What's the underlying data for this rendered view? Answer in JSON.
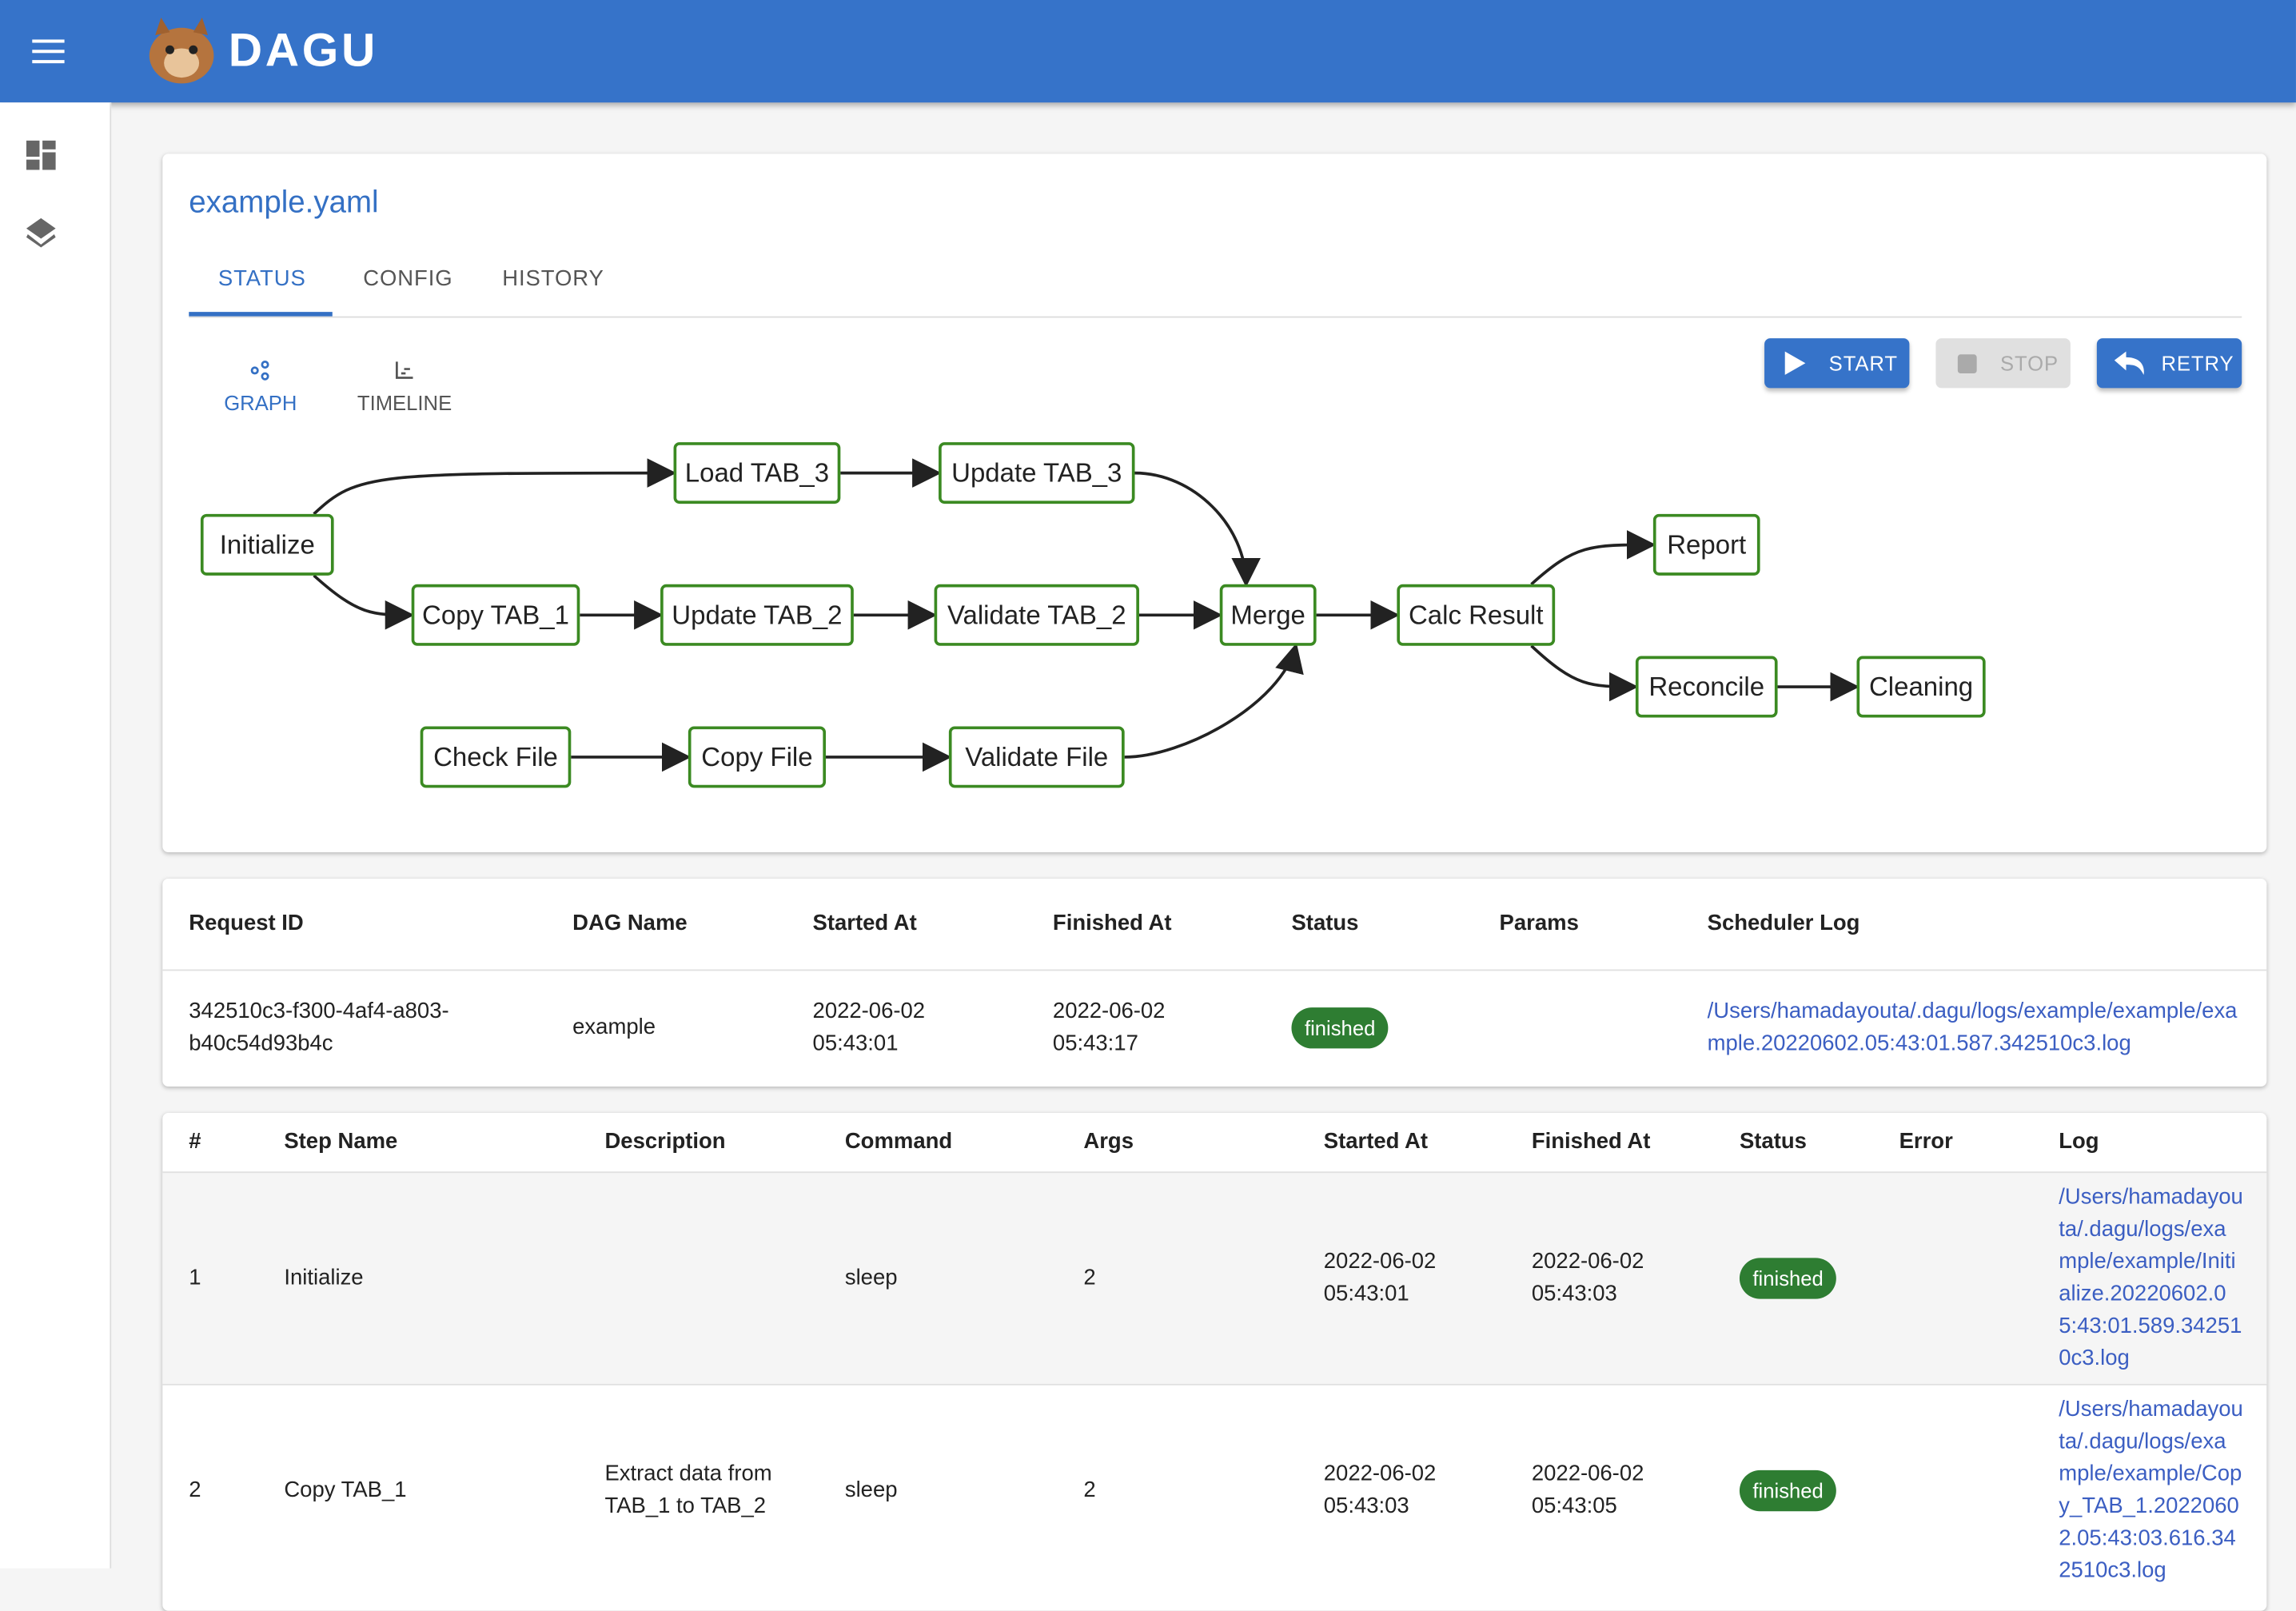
{
  "header": {
    "logo": "DAGU"
  },
  "dag": {
    "title": "example.yaml",
    "tabs": [
      "STATUS",
      "CONFIG",
      "HISTORY"
    ],
    "buttons": [
      "START",
      "STOP",
      "RETRY"
    ],
    "views": [
      "GRAPH",
      "TIMELINE"
    ]
  },
  "graph": {
    "nodes": [
      {
        "label": "Initialize"
      },
      {
        "label": "Load TAB_3"
      },
      {
        "label": "Update TAB_3"
      },
      {
        "label": "Copy TAB_1"
      },
      {
        "label": "Update TAB_2"
      },
      {
        "label": "Validate TAB_2"
      },
      {
        "label": "Merge"
      },
      {
        "label": "Calc Result"
      },
      {
        "label": "Report"
      },
      {
        "label": "Reconcile"
      },
      {
        "label": "Cleaning"
      },
      {
        "label": "Check File"
      },
      {
        "label": "Copy File"
      },
      {
        "label": "Validate File"
      }
    ]
  },
  "summary": {
    "columns": [
      "Request ID",
      "DAG Name",
      "Started At",
      "Finished At",
      "Status",
      "Params",
      "Scheduler Log"
    ],
    "rows": [
      [
        "342510c3-f300-4af4-a803-b40c54d93b4c",
        "example",
        "2022-06-02 05:43:01",
        "2022-06-02 05:43:17",
        "finished",
        null,
        "/Users/hamadayouta/.dagu/logs/example/example/example.20220602.05:43:01.587.342510c3.log"
      ]
    ]
  },
  "steps": {
    "columns": [
      "#",
      "Step Name",
      "Description",
      "Command",
      "Args",
      "Started At",
      "Finished At",
      "Status",
      "Error",
      "Log"
    ],
    "rows": [
      [
        1,
        "Initialize",
        null,
        "sleep",
        2,
        "2022-06-02 05:43:01",
        "2022-06-02 05:43:03",
        "finished",
        null,
        "/Users/hamadayouta/.dagu/logs/example/example/Initialize.20220602.05:43:01.589.342510c3.log"
      ],
      [
        2,
        "Copy TAB_1",
        "Extract data from TAB_1 to TAB_2",
        "sleep",
        2,
        "2022-06-02 05:43:03",
        "2022-06-02 05:43:05",
        "finished",
        null,
        "/Users/hamadayouta/.dagu/logs/example/example/Copy_TAB_1.20220602.05:43:03.616.342510c3.log"
      ]
    ]
  }
}
